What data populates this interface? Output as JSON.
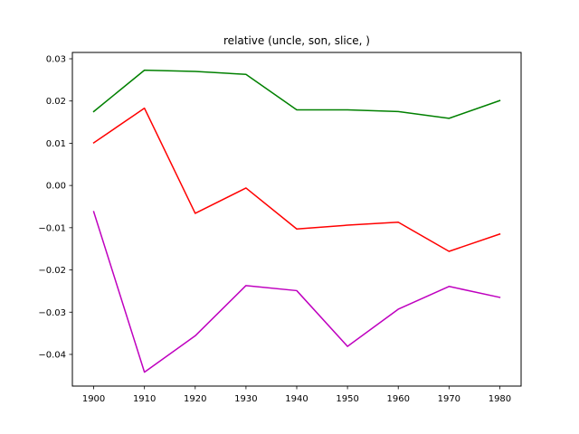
{
  "chart_data": {
    "type": "line",
    "title": "relative (uncle, son, slice, )",
    "xlabel": "",
    "ylabel": "",
    "x": [
      1900,
      1910,
      1920,
      1930,
      1940,
      1950,
      1960,
      1970,
      1980
    ],
    "xlim": [
      1895.8,
      1984.2
    ],
    "ylim": [
      -0.0475,
      0.0315
    ],
    "x_ticks": [
      "1900",
      "1910",
      "1920",
      "1930",
      "1940",
      "1950",
      "1960",
      "1970",
      "1980"
    ],
    "y_ticks": [
      -0.04,
      -0.03,
      -0.02,
      -0.01,
      0.0,
      0.01,
      0.02,
      0.03
    ],
    "y_tick_labels": [
      "−0.04",
      "−0.03",
      "−0.02",
      "−0.01",
      "0.00",
      "0.01",
      "0.02",
      "0.03"
    ],
    "grid": false,
    "series": [
      {
        "color": "#008000",
        "values": [
          0.0175,
          0.0273,
          0.027,
          0.0263,
          0.0179,
          0.0179,
          0.0175,
          0.0159,
          0.0201
        ]
      },
      {
        "color": "#ff0000",
        "values": [
          0.0101,
          0.0183,
          -0.0066,
          -0.0006,
          -0.0103,
          -0.0094,
          -0.0087,
          -0.0156,
          -0.0115
        ]
      },
      {
        "color": "#bf00bf",
        "values": [
          -0.0062,
          -0.0442,
          -0.0356,
          -0.0237,
          -0.0249,
          -0.0381,
          -0.0293,
          -0.0239,
          -0.0265
        ]
      }
    ]
  }
}
